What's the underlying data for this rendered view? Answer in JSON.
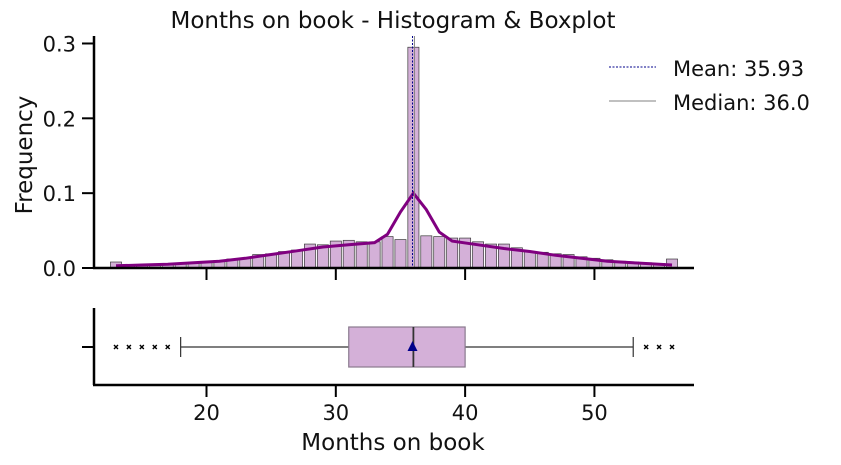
{
  "chart_data": {
    "type": "histogram+boxplot",
    "title": "Months on book - Histogram & Boxplot",
    "xlabel": "Months on book",
    "ylabel": "Frequency",
    "xlim": [
      11.3,
      57.7
    ],
    "ylim": [
      0,
      0.31
    ],
    "xticks": [
      20,
      30,
      40,
      50
    ],
    "yticks": [
      0.0,
      0.1,
      0.2,
      0.3
    ],
    "ytick_labels": [
      "0.0",
      "0.1",
      "0.2",
      "0.3"
    ],
    "colors": {
      "bar_fill": "#d4b0d8",
      "kde": "#800080",
      "mean_line": "#00008b",
      "median_line": "#808080",
      "box_fill": "#d4b0d8",
      "box_edge": "#8a7a8e",
      "mean_marker": "#00008b"
    },
    "bin_width": 0.86,
    "histogram": [
      {
        "x": 13,
        "y": 0.008
      },
      {
        "x": 14,
        "y": 0.003
      },
      {
        "x": 15,
        "y": 0.003
      },
      {
        "x": 16,
        "y": 0.003
      },
      {
        "x": 17,
        "y": 0.004
      },
      {
        "x": 18,
        "y": 0.006
      },
      {
        "x": 19,
        "y": 0.007
      },
      {
        "x": 20,
        "y": 0.008
      },
      {
        "x": 21,
        "y": 0.01
      },
      {
        "x": 22,
        "y": 0.012
      },
      {
        "x": 23,
        "y": 0.013
      },
      {
        "x": 24,
        "y": 0.018
      },
      {
        "x": 25,
        "y": 0.019
      },
      {
        "x": 26,
        "y": 0.022
      },
      {
        "x": 27,
        "y": 0.024
      },
      {
        "x": 28,
        "y": 0.032
      },
      {
        "x": 29,
        "y": 0.031
      },
      {
        "x": 30,
        "y": 0.036
      },
      {
        "x": 31,
        "y": 0.037
      },
      {
        "x": 32,
        "y": 0.035
      },
      {
        "x": 33,
        "y": 0.035
      },
      {
        "x": 34,
        "y": 0.042
      },
      {
        "x": 35,
        "y": 0.038
      },
      {
        "x": 36,
        "y": 0.295
      },
      {
        "x": 37,
        "y": 0.043
      },
      {
        "x": 38,
        "y": 0.042
      },
      {
        "x": 39,
        "y": 0.04
      },
      {
        "x": 40,
        "y": 0.04
      },
      {
        "x": 41,
        "y": 0.035
      },
      {
        "x": 42,
        "y": 0.032
      },
      {
        "x": 43,
        "y": 0.032
      },
      {
        "x": 44,
        "y": 0.027
      },
      {
        "x": 45,
        "y": 0.022
      },
      {
        "x": 46,
        "y": 0.021
      },
      {
        "x": 47,
        "y": 0.019
      },
      {
        "x": 48,
        "y": 0.018
      },
      {
        "x": 49,
        "y": 0.015
      },
      {
        "x": 50,
        "y": 0.013
      },
      {
        "x": 51,
        "y": 0.011
      },
      {
        "x": 52,
        "y": 0.009
      },
      {
        "x": 53,
        "y": 0.008
      },
      {
        "x": 54,
        "y": 0.007
      },
      {
        "x": 55,
        "y": 0.006
      },
      {
        "x": 56,
        "y": 0.012
      }
    ],
    "kde": [
      {
        "x": 13,
        "y": 0.003
      },
      {
        "x": 15,
        "y": 0.004
      },
      {
        "x": 17,
        "y": 0.005
      },
      {
        "x": 19,
        "y": 0.007
      },
      {
        "x": 21,
        "y": 0.009
      },
      {
        "x": 23,
        "y": 0.013
      },
      {
        "x": 25,
        "y": 0.018
      },
      {
        "x": 27,
        "y": 0.023
      },
      {
        "x": 29,
        "y": 0.028
      },
      {
        "x": 31,
        "y": 0.031
      },
      {
        "x": 33,
        "y": 0.034
      },
      {
        "x": 34,
        "y": 0.045
      },
      {
        "x": 35,
        "y": 0.075
      },
      {
        "x": 36,
        "y": 0.1
      },
      {
        "x": 37,
        "y": 0.078
      },
      {
        "x": 38,
        "y": 0.048
      },
      {
        "x": 39,
        "y": 0.036
      },
      {
        "x": 41,
        "y": 0.031
      },
      {
        "x": 43,
        "y": 0.026
      },
      {
        "x": 45,
        "y": 0.022
      },
      {
        "x": 47,
        "y": 0.017
      },
      {
        "x": 49,
        "y": 0.013
      },
      {
        "x": 51,
        "y": 0.009
      },
      {
        "x": 53,
        "y": 0.007
      },
      {
        "x": 55,
        "y": 0.005
      },
      {
        "x": 56,
        "y": 0.004
      }
    ],
    "mean": 35.93,
    "median": 36.0,
    "legend": [
      {
        "label": "Mean: 35.93",
        "style": "dashed",
        "color": "#00008b"
      },
      {
        "label": "Median: 36.0",
        "style": "solid",
        "color": "#808080"
      }
    ],
    "legend_position": "top-right",
    "boxplot": {
      "q1": 31,
      "median": 36,
      "q3": 40,
      "whisker_low": 18,
      "whisker_high": 53,
      "mean": 35.93,
      "outliers": [
        13,
        14,
        15,
        16,
        17,
        54,
        55,
        56
      ]
    }
  }
}
